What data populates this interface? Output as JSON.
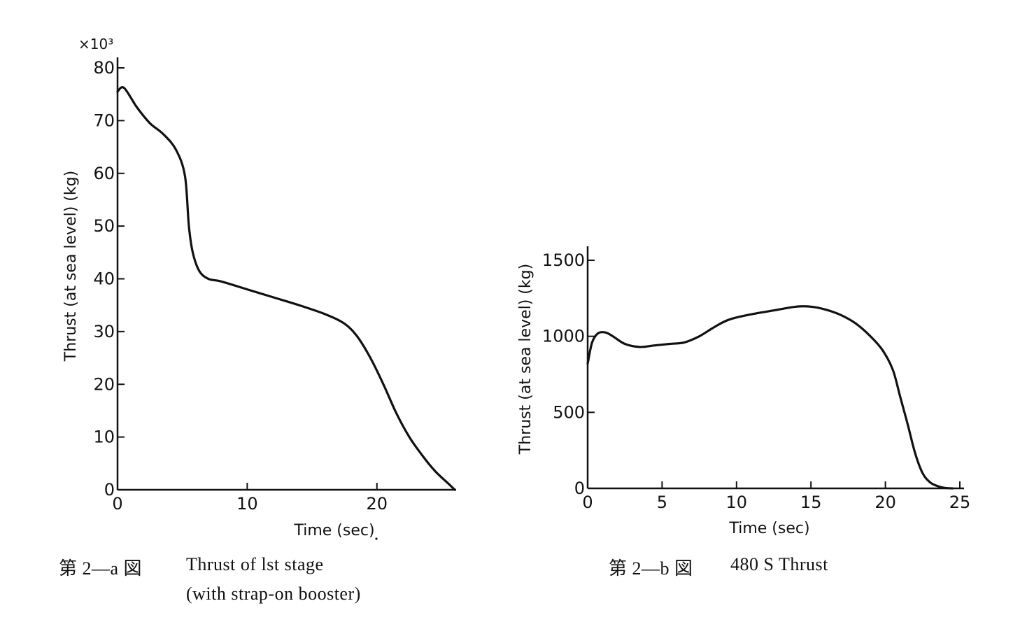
{
  "chart_data": [
    {
      "type": "line",
      "caption_fig": "第 2—a 図",
      "caption_line1": "Thrust of lst stage",
      "caption_line2": "(with strap-on booster)",
      "xlabel": "Time (sec)",
      "ylabel": "Thrust (at sea level) (kg)",
      "y_multiplier": "×10³",
      "xlim": [
        0,
        26
      ],
      "ylim": [
        0,
        80
      ],
      "x_ticks": [
        0,
        10,
        20
      ],
      "y_ticks": [
        0,
        10,
        20,
        30,
        40,
        50,
        60,
        70,
        80
      ],
      "x_tick_labels": [
        "0",
        "10",
        "20"
      ],
      "y_tick_labels": [
        "0",
        "10",
        "20",
        "30",
        "40",
        "50",
        "60",
        "70",
        "80"
      ],
      "series": [
        {
          "x": [
            0,
            0.5,
            1.5,
            2.5,
            3.5,
            4.5,
            5.2,
            5.5,
            5.8,
            6.3,
            7.0,
            8.0,
            10,
            12,
            14,
            16,
            17.5,
            18.5,
            19.5,
            20.5,
            21.5,
            22.5,
            23.5,
            24.5,
            25.5,
            26.0
          ],
          "y": [
            75.5,
            76.2,
            72.5,
            69.5,
            67.5,
            64.5,
            59.5,
            50,
            45,
            41.5,
            40,
            39.5,
            38,
            36.5,
            35,
            33.3,
            31.5,
            29,
            25,
            20,
            14.5,
            10,
            6.5,
            3.5,
            1.2,
            0
          ]
        }
      ]
    },
    {
      "type": "line",
      "caption_fig": "第 2—b 図",
      "caption_line1": "480 S Thrust",
      "xlabel": "Time (sec)",
      "ylabel": "Thrust (at sea level) (kg)",
      "xlim": [
        0,
        25
      ],
      "ylim": [
        0,
        1500
      ],
      "x_ticks": [
        0,
        5,
        10,
        15,
        20,
        25
      ],
      "y_ticks": [
        0,
        500,
        1000,
        1500
      ],
      "x_tick_labels": [
        "0",
        "5",
        "10",
        "15",
        "20",
        "25"
      ],
      "y_tick_labels": [
        "0",
        "500",
        "1000",
        "1500"
      ],
      "series": [
        {
          "x": [
            0,
            0.3,
            0.7,
            1.2,
            1.7,
            2.5,
            3.5,
            4.5,
            5.5,
            6.5,
            7.5,
            8.5,
            9.5,
            11,
            12.5,
            14,
            15,
            16,
            17,
            18,
            19,
            19.8,
            20.5,
            21,
            21.5,
            22,
            22.5,
            23,
            23.5,
            24,
            24.5
          ],
          "y": [
            820,
            960,
            1020,
            1025,
            1000,
            950,
            930,
            940,
            950,
            960,
            1000,
            1060,
            1110,
            1145,
            1170,
            1195,
            1195,
            1175,
            1140,
            1085,
            1000,
            910,
            780,
            600,
            420,
            230,
            100,
            40,
            15,
            3,
            0
          ]
        }
      ]
    }
  ]
}
